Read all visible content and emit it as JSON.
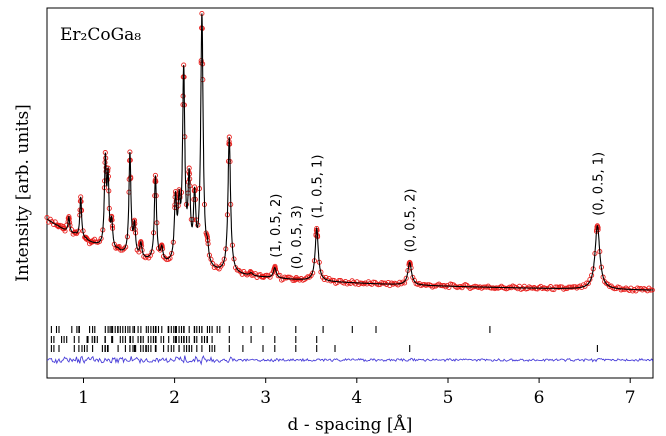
{
  "chart_data": {
    "type": "scatter",
    "title": "Er₂CoGa₈",
    "xlabel": "d - spacing [Å]",
    "ylabel": "Intensity [arb. units]",
    "xlim": [
      0.6,
      7.25
    ],
    "x_ticks": [
      "1",
      "2",
      "3",
      "4",
      "5",
      "6",
      "7"
    ],
    "grid": false,
    "legend": "none",
    "colors": {
      "observed": "#e8211e",
      "calculated": "#000000",
      "difference": "#4a3fd9",
      "tick_marks": "#000000"
    },
    "series": [
      {
        "role": "observed",
        "marker": "open circle",
        "peaks": [
          {
            "x": 0.72,
            "y": 0.27
          },
          {
            "x": 0.78,
            "y": 0.25
          },
          {
            "x": 0.84,
            "y": 0.3
          },
          {
            "x": 0.91,
            "y": 0.24
          },
          {
            "x": 0.97,
            "y": 0.37
          },
          {
            "x": 1.03,
            "y": 0.22
          },
          {
            "x": 1.09,
            "y": 0.2
          },
          {
            "x": 1.24,
            "y": 0.49
          },
          {
            "x": 1.27,
            "y": 0.42
          },
          {
            "x": 1.31,
            "y": 0.27
          },
          {
            "x": 1.38,
            "y": 0.18
          },
          {
            "x": 1.51,
            "y": 0.52
          },
          {
            "x": 1.56,
            "y": 0.26
          },
          {
            "x": 1.63,
            "y": 0.2
          },
          {
            "x": 1.79,
            "y": 0.44
          },
          {
            "x": 1.86,
            "y": 0.18
          },
          {
            "x": 2.01,
            "y": 0.34
          },
          {
            "x": 2.05,
            "y": 0.3
          },
          {
            "x": 2.1,
            "y": 0.79
          },
          {
            "x": 2.16,
            "y": 0.4
          },
          {
            "x": 2.22,
            "y": 0.34
          },
          {
            "x": 2.3,
            "y": 1.0
          },
          {
            "x": 2.36,
            "y": 0.16
          },
          {
            "x": 2.6,
            "y": 0.58
          },
          {
            "x": 2.84,
            "y": 0.1
          },
          {
            "x": 2.97,
            "y": 0.06
          },
          {
            "x": 3.1,
            "y": 0.12
          },
          {
            "x": 3.33,
            "y": 0.04
          },
          {
            "x": 3.56,
            "y": 0.26
          },
          {
            "x": 4.58,
            "y": 0.14
          },
          {
            "x": 6.64,
            "y": 0.27
          }
        ]
      },
      {
        "role": "calculated",
        "style": "line"
      },
      {
        "role": "difference",
        "style": "line"
      }
    ],
    "reflection_rows": [
      [
        0.95,
        1.1,
        1.24,
        1.27,
        1.31,
        1.38,
        1.51,
        1.56,
        1.63,
        1.69,
        1.79,
        1.86,
        1.93,
        2.01,
        2.05,
        2.1,
        2.16,
        2.22,
        2.3,
        2.36,
        2.6,
        2.75,
        2.84,
        2.97,
        3.33,
        3.63,
        3.95,
        4.21,
        5.46
      ],
      [
        0.95,
        1.05,
        1.12,
        1.24,
        1.31,
        1.51,
        1.63,
        1.79,
        2.01,
        2.1,
        2.22,
        2.3,
        2.36,
        2.6,
        2.84,
        3.1,
        3.33,
        3.56
      ],
      [
        0.95,
        1.1,
        1.24,
        1.27,
        1.38,
        1.51,
        1.56,
        1.69,
        1.79,
        1.93,
        2.05,
        2.16,
        2.3,
        2.6,
        2.75,
        2.97,
        3.1,
        3.33,
        3.56,
        3.76,
        4.58,
        6.64
      ]
    ],
    "annotations": [
      {
        "text": "(1, 0.5, 2)",
        "x": 3.1
      },
      {
        "text": "(0, 0.5, 3)",
        "x": 3.33
      },
      {
        "text": "(1, 0.5, 1)",
        "x": 3.56
      },
      {
        "text": "(0, 0.5, 2)",
        "x": 4.58
      },
      {
        "text": "(0, 0.5, 1)",
        "x": 6.64
      }
    ]
  }
}
